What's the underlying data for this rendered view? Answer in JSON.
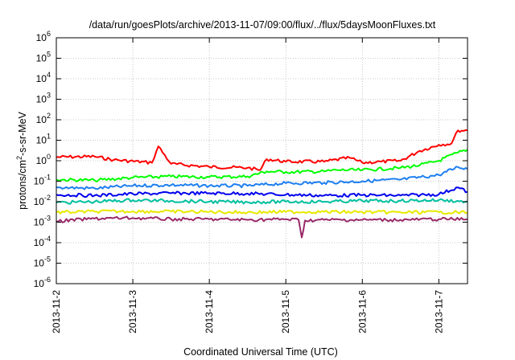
{
  "chart_data": {
    "type": "line",
    "title": "/data/run/goesPlots/archive/2013-11-07/09:00/flux/../flux/5daysMoonFluxes.txt",
    "xlabel": "Coordinated Universal Time (UTC)",
    "ylabel": {
      "prefix": "protons/cm",
      "sup": "2",
      "suffix": "-s-sr-MeV"
    },
    "y_scale": "log",
    "ylim": [
      1e-06,
      1000000.0
    ],
    "y_ticks": [
      {
        "value": 1e-06,
        "base": "10",
        "exp": "-6"
      },
      {
        "value": 1e-05,
        "base": "10",
        "exp": "-5"
      },
      {
        "value": 0.0001,
        "base": "10",
        "exp": "-4"
      },
      {
        "value": 0.001,
        "base": "10",
        "exp": "-3"
      },
      {
        "value": 0.01,
        "base": "10",
        "exp": "-2"
      },
      {
        "value": 0.1,
        "base": "10",
        "exp": "-1"
      },
      {
        "value": 1.0,
        "base": "10",
        "exp": "0"
      },
      {
        "value": 10.0,
        "base": "10",
        "exp": "1"
      },
      {
        "value": 100.0,
        "base": "10",
        "exp": "2"
      },
      {
        "value": 1000.0,
        "base": "10",
        "exp": "3"
      },
      {
        "value": 10000.0,
        "base": "10",
        "exp": "4"
      },
      {
        "value": 100000.0,
        "base": "10",
        "exp": "5"
      },
      {
        "value": 1000000.0,
        "base": "10",
        "exp": "6"
      }
    ],
    "xlim": [
      "2013-11-02",
      "2013-11-07 09:00"
    ],
    "x_ticks": [
      {
        "value": "2013-11-02",
        "label": "2013-11-2"
      },
      {
        "value": "2013-11-03",
        "label": "2013-11-3"
      },
      {
        "value": "2013-11-04",
        "label": "2013-11-4"
      },
      {
        "value": "2013-11-05",
        "label": "2013-11-5"
      },
      {
        "value": "2013-11-06",
        "label": "2013-11-6"
      },
      {
        "value": "2013-11-07",
        "label": "2013-11-7"
      }
    ],
    "grid": true,
    "series": [
      {
        "color": "#ff0000",
        "x": [
          "2013-11-02 00:00",
          "2013-11-02 12:00",
          "2013-11-02 18:00",
          "2013-11-03 06:00",
          "2013-11-03 08:00",
          "2013-11-03 12:00",
          "2013-11-04 00:00",
          "2013-11-04 12:00",
          "2013-11-04 16:00",
          "2013-11-04 18:00",
          "2013-11-05 00:00",
          "2013-11-05 12:00",
          "2013-11-05 20:00",
          "2013-11-06 00:00",
          "2013-11-06 06:00",
          "2013-11-06 12:00",
          "2013-11-06 18:00",
          "2013-11-07 00:00",
          "2013-11-07 04:00",
          "2013-11-07 06:00",
          "2013-11-07 09:00"
        ],
        "y": [
          1.5,
          1.6,
          1.1,
          0.8,
          5.0,
          0.7,
          0.5,
          0.45,
          0.35,
          1.2,
          0.9,
          0.9,
          1.4,
          0.8,
          0.9,
          1.0,
          3.0,
          6.0,
          7.0,
          30,
          30
        ]
      },
      {
        "color": "#00ff00",
        "x": [
          "2013-11-02 00:00",
          "2013-11-02 12:00",
          "2013-11-03 00:00",
          "2013-11-03 12:00",
          "2013-11-04 00:00",
          "2013-11-04 12:00",
          "2013-11-04 18:00",
          "2013-11-05 00:00",
          "2013-11-05 12:00",
          "2013-11-05 16:00",
          "2013-11-06 00:00",
          "2013-11-06 12:00",
          "2013-11-06 18:00",
          "2013-11-07 00:00",
          "2013-11-07 06:00",
          "2013-11-07 09:00"
        ],
        "y": [
          0.12,
          0.11,
          0.15,
          0.17,
          0.16,
          0.17,
          0.3,
          0.28,
          0.3,
          0.35,
          0.35,
          0.45,
          0.6,
          1.0,
          2.5,
          3.5
        ]
      },
      {
        "color": "#1e7ff0",
        "x": [
          "2013-11-02 00:00",
          "2013-11-02 12:00",
          "2013-11-03 00:00",
          "2013-11-03 12:00",
          "2013-11-04 00:00",
          "2013-11-04 12:00",
          "2013-11-05 00:00",
          "2013-11-05 12:00",
          "2013-11-06 00:00",
          "2013-11-06 12:00",
          "2013-11-07 00:00",
          "2013-11-07 06:00",
          "2013-11-07 09:00"
        ],
        "y": [
          0.05,
          0.045,
          0.06,
          0.065,
          0.06,
          0.06,
          0.08,
          0.085,
          0.1,
          0.12,
          0.2,
          0.5,
          0.4
        ]
      },
      {
        "color": "#0000ee",
        "x": [
          "2013-11-02 00:00",
          "2013-11-02 12:00",
          "2013-11-03 00:00",
          "2013-11-03 12:00",
          "2013-11-04 00:00",
          "2013-11-04 12:00",
          "2013-11-05 00:00",
          "2013-11-05 12:00",
          "2013-11-06 00:00",
          "2013-11-06 12:00",
          "2013-11-07 00:00",
          "2013-11-07 06:00",
          "2013-11-07 09:00"
        ],
        "y": [
          0.022,
          0.02,
          0.024,
          0.026,
          0.026,
          0.025,
          0.022,
          0.02,
          0.021,
          0.02,
          0.023,
          0.05,
          0.03
        ]
      },
      {
        "color": "#00c0a0",
        "x": [
          "2013-11-02 00:00",
          "2013-11-02 12:00",
          "2013-11-03 00:00",
          "2013-11-03 12:00",
          "2013-11-04 00:00",
          "2013-11-04 12:00",
          "2013-11-05 00:00",
          "2013-11-05 12:00",
          "2013-11-06 00:00",
          "2013-11-06 12:00",
          "2013-11-07 00:00",
          "2013-11-07 09:00"
        ],
        "y": [
          0.009,
          0.01,
          0.012,
          0.011,
          0.01,
          0.0095,
          0.01,
          0.01,
          0.011,
          0.011,
          0.012,
          0.01
        ]
      },
      {
        "color": "#e8e800",
        "x": [
          "2013-11-02 00:00",
          "2013-11-02 12:00",
          "2013-11-03 00:00",
          "2013-11-03 12:00",
          "2013-11-04 00:00",
          "2013-11-04 12:00",
          "2013-11-05 00:00",
          "2013-11-05 12:00",
          "2013-11-06 00:00",
          "2013-11-06 12:00",
          "2013-11-07 00:00",
          "2013-11-07 09:00"
        ],
        "y": [
          0.003,
          0.0033,
          0.0034,
          0.0033,
          0.0032,
          0.003,
          0.0032,
          0.0032,
          0.0031,
          0.003,
          0.0031,
          0.003
        ]
      },
      {
        "color": "#9a2a6a",
        "x": [
          "2013-11-02 00:00",
          "2013-11-02 12:00",
          "2013-11-03 00:00",
          "2013-11-03 12:00",
          "2013-11-04 00:00",
          "2013-11-04 12:00",
          "2013-11-05 00:00",
          "2013-11-05 04:00",
          "2013-11-05 05:00",
          "2013-11-05 06:00",
          "2013-11-05 12:00",
          "2013-11-06 00:00",
          "2013-11-06 12:00",
          "2013-11-07 00:00",
          "2013-11-07 09:00"
        ],
        "y": [
          0.0011,
          0.0015,
          0.0016,
          0.0014,
          0.0014,
          0.0013,
          0.0014,
          0.0013,
          0.00018,
          0.0012,
          0.0013,
          0.0013,
          0.0013,
          0.0014,
          0.0014
        ]
      }
    ]
  }
}
